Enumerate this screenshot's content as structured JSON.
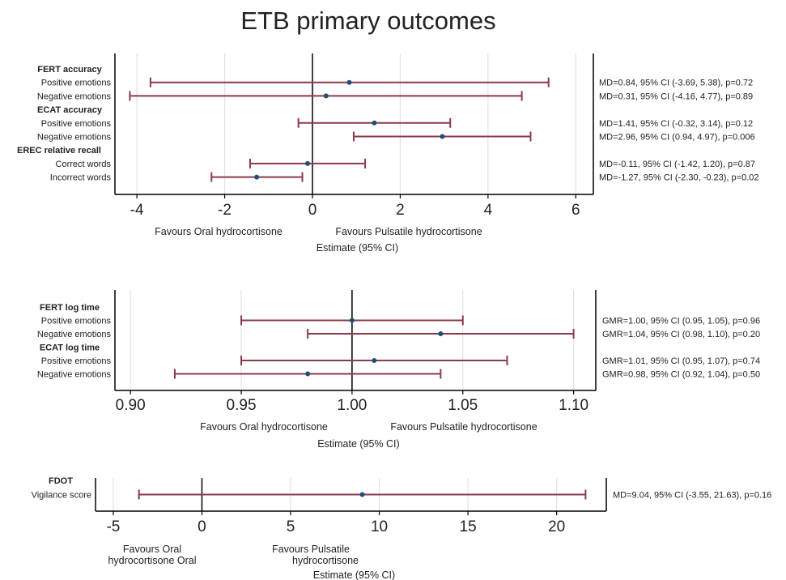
{
  "title": "ETB primary outcomes",
  "colors": {
    "ci_line": "#8b3a4a",
    "point": "#1f4e79",
    "grid": "#e3e3e3",
    "axis": "#000000"
  },
  "chart_data": [
    {
      "type": "forest",
      "id": "panel1",
      "xlim": [
        -4.5,
        6.4
      ],
      "ticks": [
        -4,
        -2,
        0,
        2,
        4,
        6
      ],
      "tick_labels": [
        "-4",
        "-2",
        "0",
        "2",
        "4",
        "6"
      ],
      "grid": true,
      "reference": 0,
      "favours_left": "Favours Oral hydrocortisone",
      "favours_right": "Favours Pulsatile hydrocortisone",
      "xlabel": "Estimate (95% CI)",
      "rows": [
        {
          "label": "FERT accuracy",
          "header": true
        },
        {
          "label": "Positive emotions",
          "est": 0.84,
          "lo": -3.69,
          "hi": 5.38,
          "text": "MD=0.84, 95% CI (-3.69, 5.38), p=0.72"
        },
        {
          "label": "Negative emotions",
          "est": 0.31,
          "lo": -4.16,
          "hi": 4.77,
          "text": "MD=0.31, 95% CI (-4.16, 4.77), p=0.89"
        },
        {
          "label": "ECAT accuracy",
          "header": true
        },
        {
          "label": "Positive emotions",
          "est": 1.41,
          "lo": -0.32,
          "hi": 3.14,
          "text": "MD=1.41, 95% CI (-0.32, 3.14), p=0.12"
        },
        {
          "label": "Negative emotions",
          "est": 2.96,
          "lo": 0.94,
          "hi": 4.97,
          "text": "MD=2.96, 95% CI (0.94, 4.97), p=0.006"
        },
        {
          "label": "EREC relative recall",
          "header": true
        },
        {
          "label": "Correct words",
          "est": -0.11,
          "lo": -1.42,
          "hi": 1.2,
          "text": "MD=-0.11, 95% CI (-1.42, 1.20), p=0.87"
        },
        {
          "label": "Incorrect words",
          "est": -1.27,
          "lo": -2.3,
          "hi": -0.23,
          "text": "MD=-1.27, 95% CI (-2.30, -0.23), p=0.02"
        }
      ]
    },
    {
      "type": "forest",
      "id": "panel2",
      "xlim": [
        0.893,
        1.11
      ],
      "ticks": [
        0.9,
        0.95,
        1.0,
        1.05,
        1.1
      ],
      "tick_labels": [
        "0.90",
        "0.95",
        "1.00",
        "1.05",
        "1.10"
      ],
      "grid": true,
      "reference": 1.0,
      "favours_left": "Favours Oral hydrocortisone",
      "favours_right": "Favours Pulsatile hydrocortisone",
      "xlabel": "Estimate (95% CI)",
      "rows": [
        {
          "label": "FERT log time",
          "header": true
        },
        {
          "label": "Positive emotions",
          "est": 1.0,
          "lo": 0.95,
          "hi": 1.05,
          "text": "GMR=1.00, 95% CI (0.95, 1.05), p=0.96"
        },
        {
          "label": "Negative emotions",
          "est": 1.04,
          "lo": 0.98,
          "hi": 1.1,
          "text": "GMR=1.04, 95% CI (0.98, 1.10), p=0.20"
        },
        {
          "label": "ECAT log time",
          "header": true
        },
        {
          "label": "Positive emotions",
          "est": 1.01,
          "lo": 0.95,
          "hi": 1.07,
          "text": "GMR=1.01, 95% CI (0.95, 1.07), p=0.74"
        },
        {
          "label": "Negative emotions",
          "est": 0.98,
          "lo": 0.92,
          "hi": 1.04,
          "text": "GMR=0.98, 95% CI (0.92, 1.04), p=0.50"
        }
      ]
    },
    {
      "type": "forest",
      "id": "panel3",
      "xlim": [
        -6.0,
        22.8
      ],
      "ticks": [
        -5,
        0,
        5,
        10,
        15,
        20
      ],
      "tick_labels": [
        "-5",
        "0",
        "5",
        "10",
        "15",
        "20"
      ],
      "grid": true,
      "reference": 0,
      "favours_left": "Favours Oral hydrocortisone Oral",
      "favours_right": "Favours Pulsatile hydrocortisone",
      "xlabel": "Estimate (95% CI)",
      "rows": [
        {
          "label": "FDOT",
          "header": true
        },
        {
          "label": "Vigilance score",
          "est": 9.04,
          "lo": -3.55,
          "hi": 21.63,
          "text": "MD=9.04, 95% CI (-3.55, 21.63), p=0.16"
        }
      ]
    }
  ]
}
